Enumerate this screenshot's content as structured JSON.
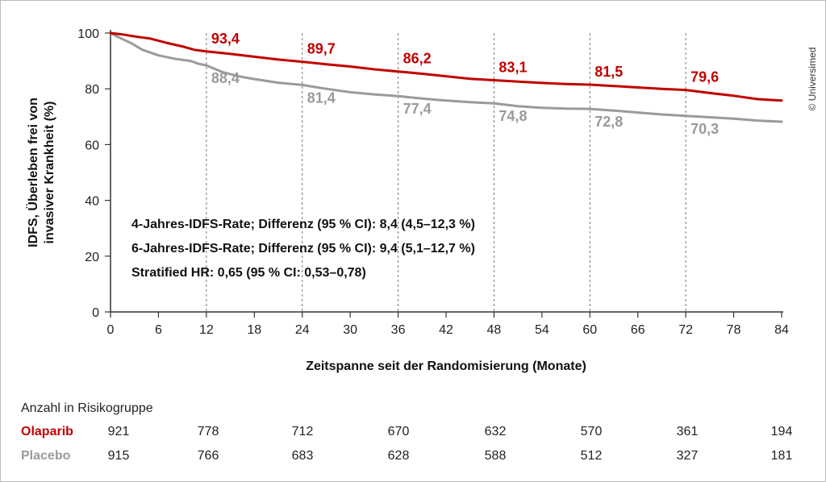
{
  "chart_data": {
    "type": "line",
    "title": "",
    "xlabel": "Zeitspanne seit der Randomisierung (Monate)",
    "ylabel_lines": [
      "IDFS, Überleben frei von",
      "invasiver Krankheit (%)"
    ],
    "xlim": [
      0,
      84
    ],
    "ylim": [
      0,
      100
    ],
    "x_ticks": [
      "0",
      "6",
      "12",
      "18",
      "24",
      "30",
      "36",
      "42",
      "48",
      "54",
      "60",
      "66",
      "72",
      "78",
      "84"
    ],
    "y_ticks": [
      "0",
      "20",
      "40",
      "60",
      "80",
      "100"
    ],
    "reference_lines_x": [
      12,
      24,
      36,
      48,
      60,
      72
    ],
    "colors": {
      "olaparib": "#c00000",
      "placebo": "#9a9a9a"
    },
    "series": [
      {
        "name": "Olaparib",
        "color": "#c00000",
        "points": [
          [
            0,
            100
          ],
          [
            1.5,
            99.5
          ],
          [
            3,
            98.8
          ],
          [
            5,
            98
          ],
          [
            7,
            96.5
          ],
          [
            9,
            95.2
          ],
          [
            10.5,
            94
          ],
          [
            12,
            93.4
          ],
          [
            15,
            92.5
          ],
          [
            18,
            91.5
          ],
          [
            21,
            90.5
          ],
          [
            24,
            89.7
          ],
          [
            27,
            88.8
          ],
          [
            30,
            88
          ],
          [
            33,
            87
          ],
          [
            36,
            86.2
          ],
          [
            39,
            85.4
          ],
          [
            42,
            84.5
          ],
          [
            45,
            83.6
          ],
          [
            48,
            83.1
          ],
          [
            51,
            82.6
          ],
          [
            54,
            82.1
          ],
          [
            57,
            81.7
          ],
          [
            60,
            81.5
          ],
          [
            63,
            81
          ],
          [
            66,
            80.5
          ],
          [
            69,
            80
          ],
          [
            72,
            79.6
          ],
          [
            75,
            78.5
          ],
          [
            78,
            77.5
          ],
          [
            81,
            76.3
          ],
          [
            84,
            75.8
          ]
        ],
        "labels": [
          [
            12,
            "93,4"
          ],
          [
            24,
            "89,7"
          ],
          [
            36,
            "86,2"
          ],
          [
            48,
            "83,1"
          ],
          [
            60,
            "81,5"
          ],
          [
            72,
            "79,6"
          ]
        ]
      },
      {
        "name": "Placebo",
        "color": "#9a9a9a",
        "points": [
          [
            0,
            100
          ],
          [
            1,
            98.5
          ],
          [
            2.5,
            96.5
          ],
          [
            4,
            94
          ],
          [
            6,
            92
          ],
          [
            8,
            90.8
          ],
          [
            10,
            90
          ],
          [
            11,
            89
          ],
          [
            12,
            88.4
          ],
          [
            14,
            86
          ],
          [
            16,
            84.5
          ],
          [
            18,
            83.5
          ],
          [
            21,
            82.2
          ],
          [
            24,
            81.4
          ],
          [
            27,
            80
          ],
          [
            30,
            78.8
          ],
          [
            33,
            78
          ],
          [
            36,
            77.4
          ],
          [
            39,
            76.5
          ],
          [
            42,
            75.8
          ],
          [
            45,
            75.2
          ],
          [
            48,
            74.8
          ],
          [
            51,
            73.8
          ],
          [
            54,
            73.2
          ],
          [
            57,
            72.9
          ],
          [
            60,
            72.8
          ],
          [
            63,
            72.2
          ],
          [
            66,
            71.5
          ],
          [
            69,
            70.8
          ],
          [
            72,
            70.3
          ],
          [
            75,
            69.8
          ],
          [
            78,
            69.3
          ],
          [
            81,
            68.6
          ],
          [
            84,
            68.2
          ]
        ],
        "labels": [
          [
            12,
            "88,4"
          ],
          [
            24,
            "81,4"
          ],
          [
            36,
            "77,4"
          ],
          [
            48,
            "74,8"
          ],
          [
            60,
            "72,8"
          ],
          [
            72,
            "70,3"
          ]
        ]
      }
    ],
    "annotations": [
      "4-Jahres-IDFS-Rate; Differenz (95 % CI): 8,4 (4,5–12,3 %)",
      "6-Jahres-IDFS-Rate; Differenz (95 % CI): 9,4 (5,1–12,7 %)",
      "Stratified HR: 0,65 (95 % CI: 0,53–0,78)"
    ],
    "risk_table": {
      "title": "Anzahl in Risikogruppe",
      "rows": [
        {
          "name": "Olaparib",
          "color": "#c00000",
          "values": [
            "921",
            "778",
            "712",
            "670",
            "632",
            "570",
            "361",
            "194"
          ]
        },
        {
          "name": "Placebo",
          "color": "#9a9a9a",
          "values": [
            "915",
            "766",
            "683",
            "628",
            "588",
            "512",
            "327",
            "181"
          ]
        }
      ]
    }
  },
  "copyright": "© Universimed"
}
